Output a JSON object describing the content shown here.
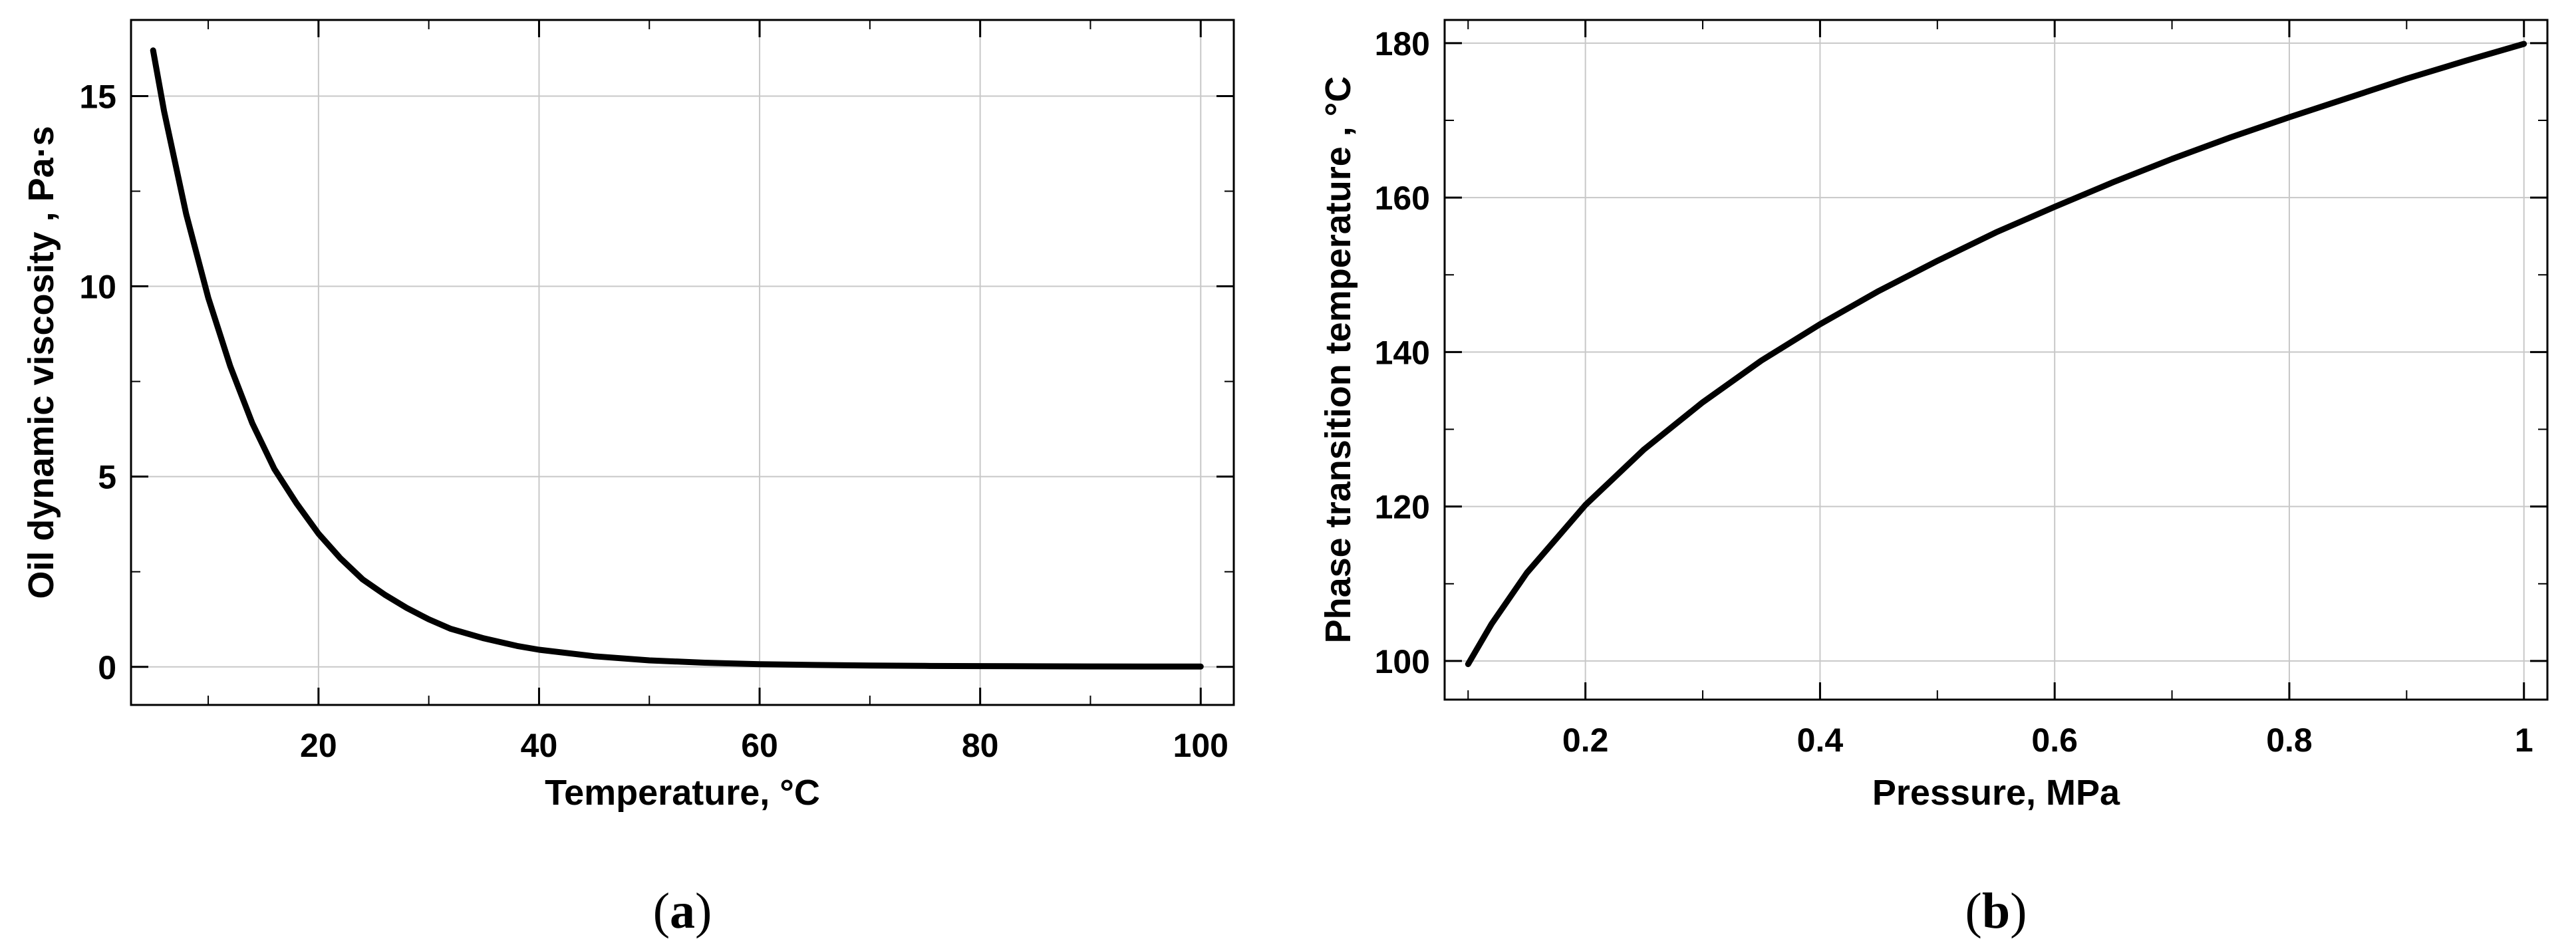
{
  "chart_data": [
    {
      "type": "line",
      "panel_label": "a",
      "xlabel": "Temperature, °C",
      "ylabel": "Oil dynamic viscosity , Pa·s",
      "xlim": [
        3,
        103
      ],
      "ylim": [
        -1,
        17
      ],
      "xticks": [
        20,
        40,
        60,
        80,
        100
      ],
      "yticks": [
        0,
        5,
        10,
        15
      ],
      "grid": true,
      "series": [
        {
          "color": "#000000",
          "x": [
            5,
            6,
            8,
            10,
            12,
            14,
            16,
            18,
            20,
            22,
            24,
            26,
            28,
            30,
            32,
            35,
            38,
            40,
            45,
            50,
            55,
            60,
            65,
            70,
            75,
            80,
            85,
            90,
            95,
            100
          ],
          "y": [
            16.2,
            14.6,
            11.9,
            9.7,
            7.9,
            6.4,
            5.2,
            4.3,
            3.5,
            2.85,
            2.3,
            1.9,
            1.55,
            1.25,
            1.0,
            0.75,
            0.55,
            0.45,
            0.28,
            0.17,
            0.11,
            0.07,
            0.05,
            0.035,
            0.025,
            0.02,
            0.015,
            0.012,
            0.01,
            0.008
          ]
        }
      ]
    },
    {
      "type": "line",
      "panel_label": "b",
      "xlabel": "Pressure, MPa",
      "ylabel": "Phase transition temperature , °C",
      "xlim": [
        0.08,
        1.02
      ],
      "ylim": [
        95,
        183
      ],
      "xticks": [
        0.2,
        0.4,
        0.6,
        0.8,
        1.0
      ],
      "yticks": [
        100,
        120,
        140,
        160,
        180
      ],
      "grid": true,
      "series": [
        {
          "color": "#000000",
          "x": [
            0.1,
            0.12,
            0.15,
            0.2,
            0.25,
            0.3,
            0.35,
            0.4,
            0.45,
            0.5,
            0.55,
            0.6,
            0.65,
            0.7,
            0.75,
            0.8,
            0.85,
            0.9,
            0.95,
            1.0
          ],
          "y": [
            99.6,
            104.8,
            111.4,
            120.2,
            127.4,
            133.5,
            138.9,
            143.6,
            147.9,
            151.8,
            155.5,
            158.8,
            162.0,
            165.0,
            167.8,
            170.4,
            172.9,
            175.4,
            177.7,
            179.9
          ]
        }
      ]
    }
  ]
}
